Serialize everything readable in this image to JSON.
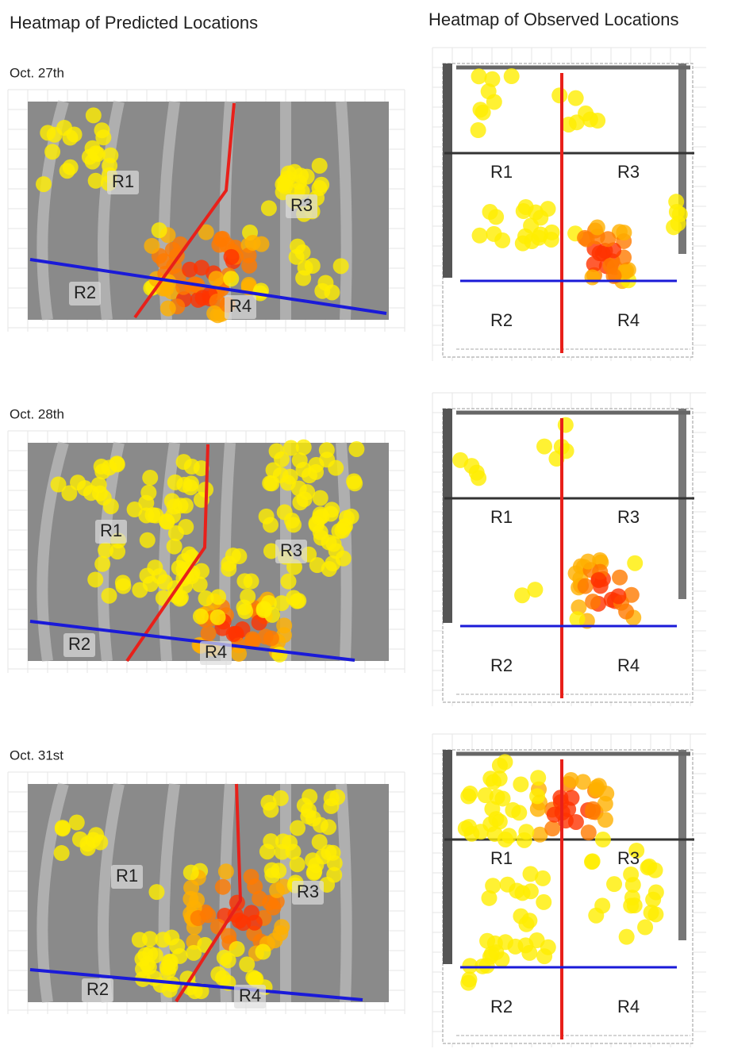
{
  "titles": {
    "predicted": "Heatmap of Predicted Locations",
    "observed": "Heatmap of Observed Locations"
  },
  "rows": [
    {
      "date": "Oct. 27th"
    },
    {
      "date": "Oct. 28th"
    },
    {
      "date": "Oct. 31st"
    }
  ],
  "regions": [
    "R1",
    "R2",
    "R3",
    "R4"
  ]
}
